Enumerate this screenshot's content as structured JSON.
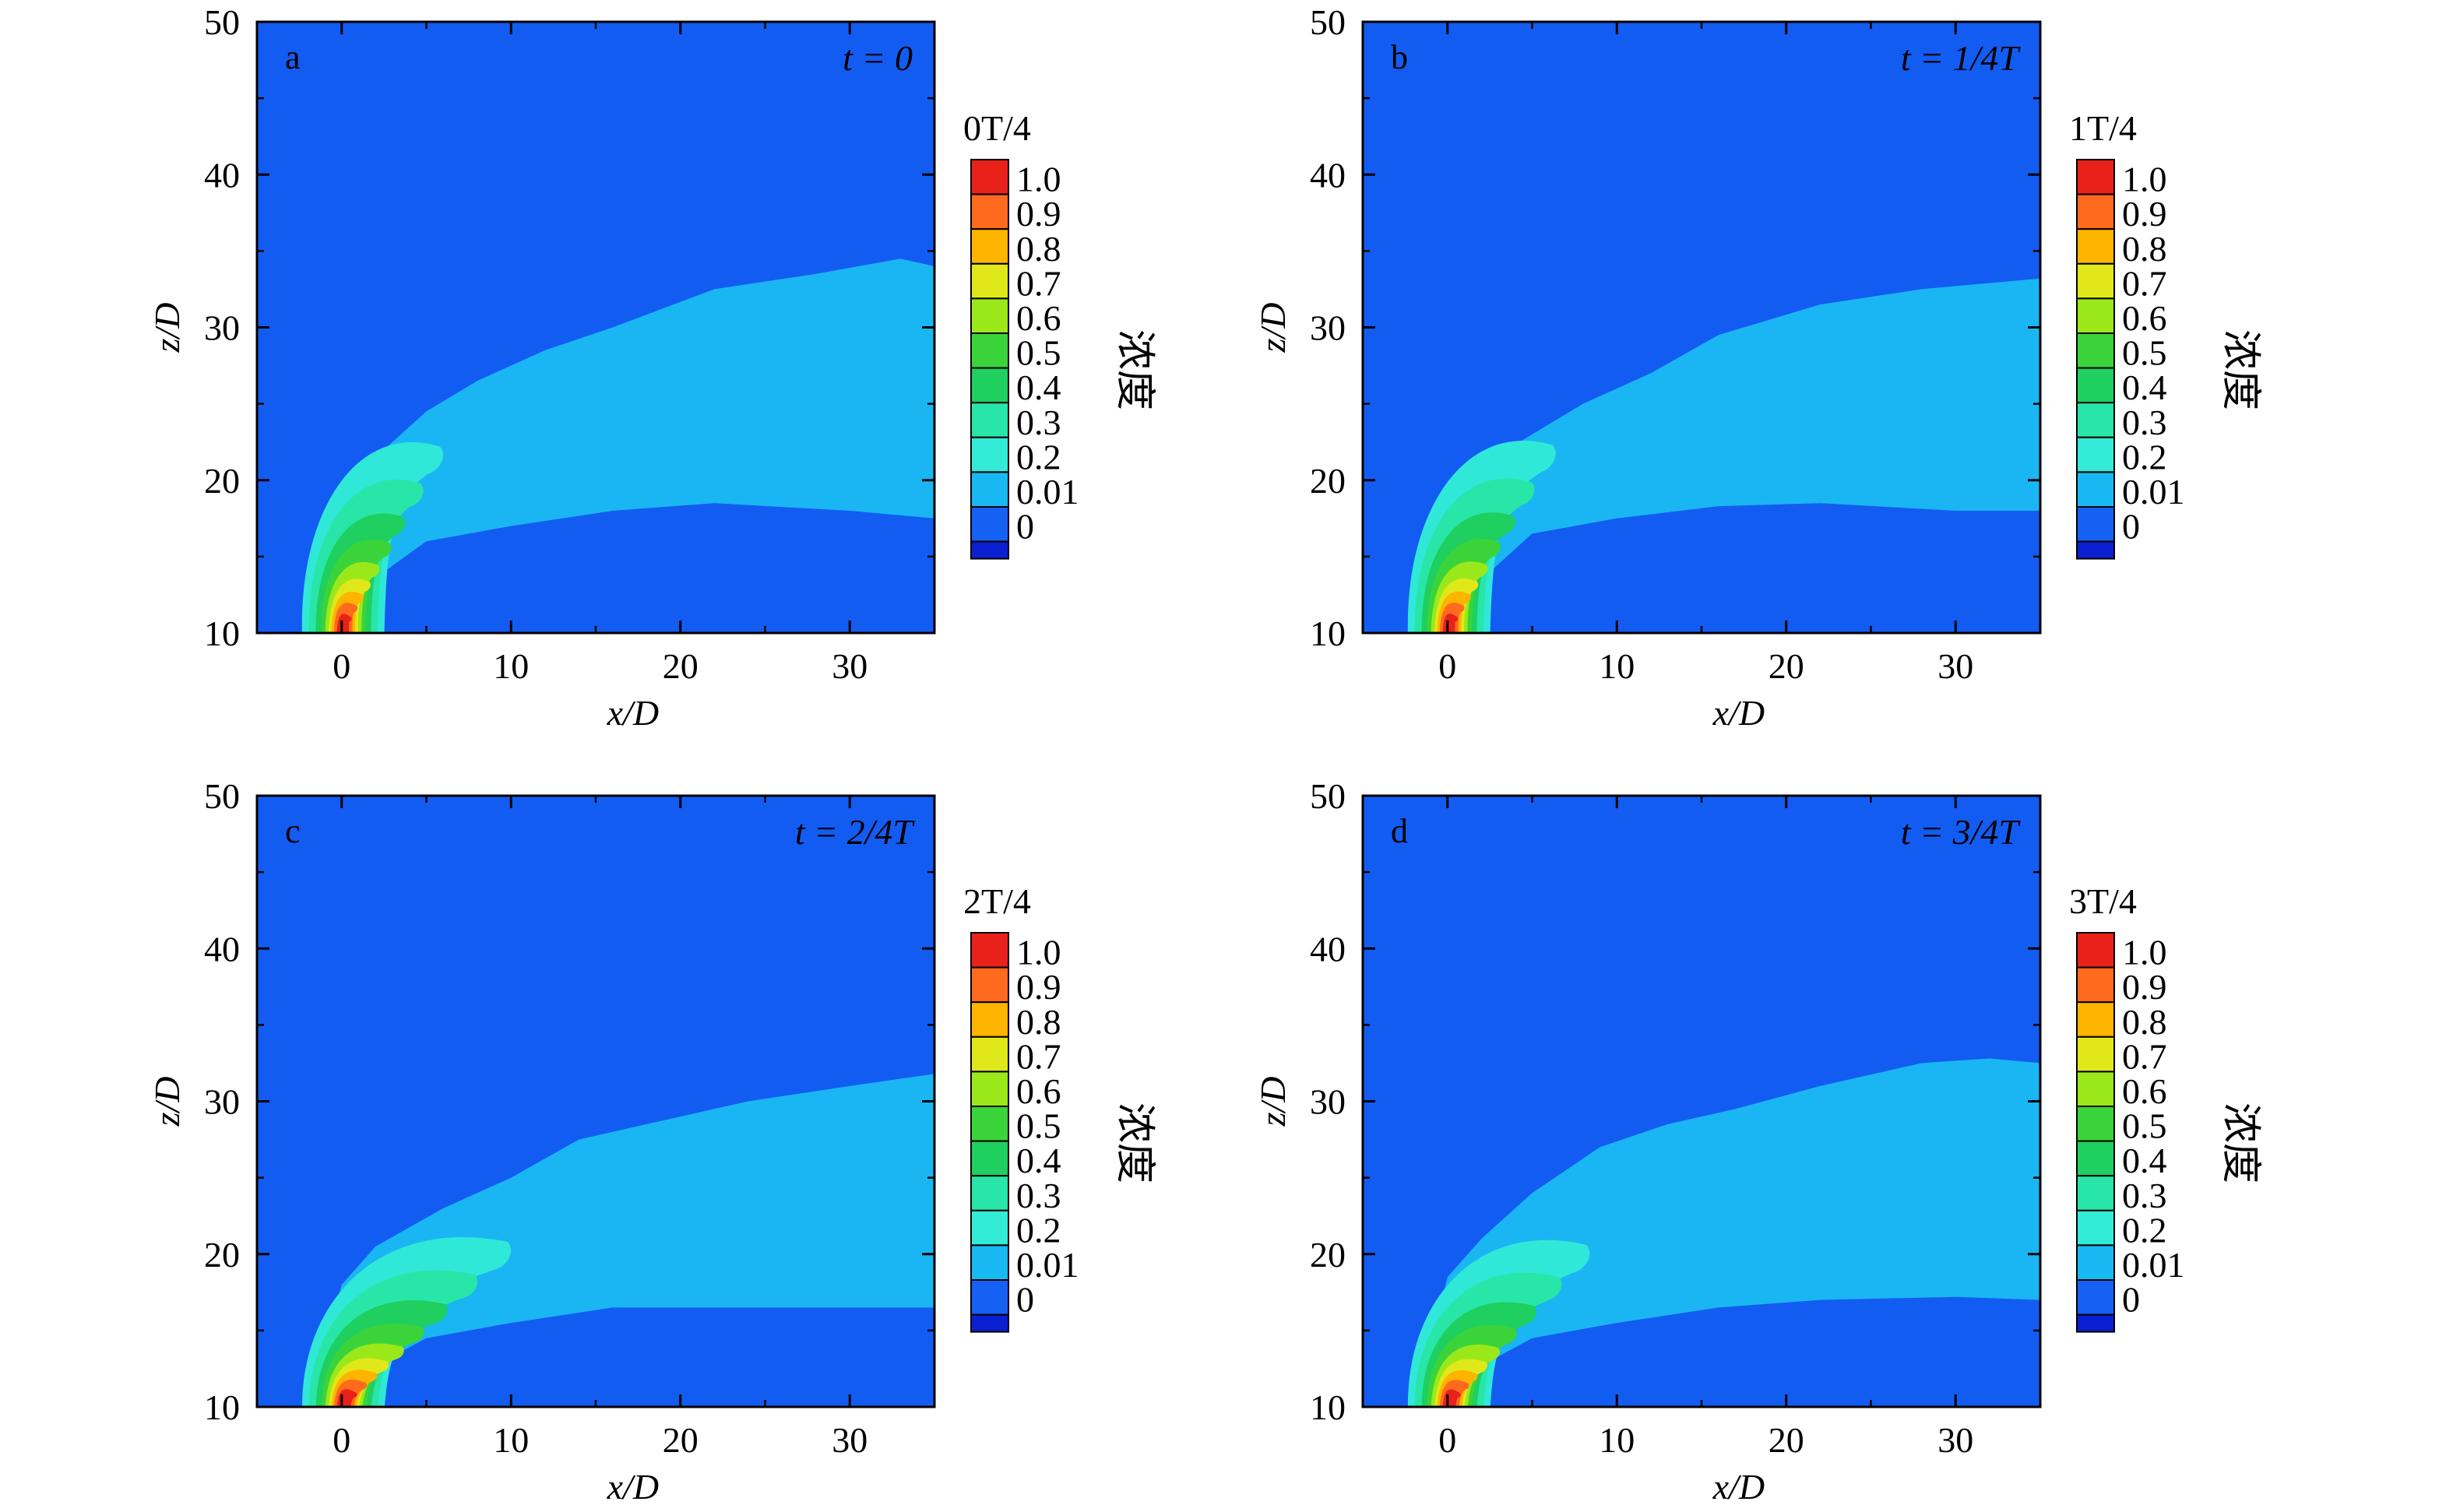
{
  "chart_data": [
    {
      "type": "heatmap",
      "panel": "a",
      "time_label": "t = 0",
      "colorbar_title": "0T/4",
      "colorbar_name": "浓度",
      "xlabel": "x/D",
      "ylabel": "z/D",
      "xlim": [
        -5,
        35
      ],
      "ylim": [
        10,
        50
      ],
      "xticks": [
        0,
        10,
        20,
        30
      ],
      "yticks": [
        10,
        20,
        30,
        40,
        50
      ],
      "plume_outer_upper": [
        [
          -1.5,
          10
        ],
        [
          -1.2,
          14
        ],
        [
          0,
          18.5
        ],
        [
          2,
          21.5
        ],
        [
          5,
          24.5
        ],
        [
          8,
          26.5
        ],
        [
          12,
          28.5
        ],
        [
          16,
          30
        ],
        [
          22,
          32.5
        ],
        [
          28,
          33.5
        ],
        [
          33,
          34.5
        ],
        [
          35,
          34
        ]
      ],
      "plume_outer_lower": [
        [
          35,
          17.5
        ],
        [
          30,
          18
        ],
        [
          22,
          18.5
        ],
        [
          16,
          18
        ],
        [
          10,
          17
        ],
        [
          5,
          16
        ],
        [
          2.5,
          14
        ],
        [
          1.5,
          12
        ],
        [
          1.2,
          10
        ]
      ],
      "jet_tip": [
        5.8,
        21.6
      ]
    },
    {
      "type": "heatmap",
      "panel": "b",
      "time_label": "t = 1/4T",
      "colorbar_title": "1T/4",
      "colorbar_name": "浓度",
      "xlabel": "x/D",
      "ylabel": "z/D",
      "xlim": [
        -5,
        35
      ],
      "ylim": [
        10,
        50
      ],
      "xticks": [
        0,
        10,
        20,
        30
      ],
      "yticks": [
        10,
        20,
        30,
        40,
        50
      ],
      "plume_outer_upper": [
        [
          -1.5,
          10
        ],
        [
          -1.2,
          14
        ],
        [
          0,
          18.5
        ],
        [
          2,
          21
        ],
        [
          5,
          23
        ],
        [
          8,
          25
        ],
        [
          12,
          27
        ],
        [
          16,
          29.5
        ],
        [
          22,
          31.5
        ],
        [
          28,
          32.5
        ],
        [
          33,
          33
        ],
        [
          35,
          33.2
        ]
      ],
      "plume_outer_lower": [
        [
          35,
          18
        ],
        [
          30,
          18
        ],
        [
          22,
          18.5
        ],
        [
          16,
          18.3
        ],
        [
          10,
          17.5
        ],
        [
          5,
          16.5
        ],
        [
          2.5,
          14
        ],
        [
          1.5,
          12
        ],
        [
          1.2,
          10
        ]
      ],
      "jet_tip": [
        6.2,
        21.7
      ]
    },
    {
      "type": "heatmap",
      "panel": "c",
      "time_label": "t = 2/4T",
      "colorbar_title": "2T/4",
      "colorbar_name": "浓度",
      "xlabel": "x/D",
      "ylabel": "z/D",
      "xlim": [
        -5,
        35
      ],
      "ylim": [
        10,
        50
      ],
      "xticks": [
        0,
        10,
        20,
        30
      ],
      "yticks": [
        10,
        20,
        30,
        40,
        50
      ],
      "plume_outer_upper": [
        [
          -1.5,
          10
        ],
        [
          -1.2,
          13
        ],
        [
          0,
          18
        ],
        [
          2,
          20.5
        ],
        [
          6,
          23
        ],
        [
          10,
          25
        ],
        [
          14,
          27.5
        ],
        [
          18,
          28.5
        ],
        [
          24,
          30
        ],
        [
          30,
          31
        ],
        [
          35,
          31.8
        ]
      ],
      "plume_outer_lower": [
        [
          35,
          16.5
        ],
        [
          30,
          16.5
        ],
        [
          22,
          16.5
        ],
        [
          16,
          16.5
        ],
        [
          10,
          15.5
        ],
        [
          5,
          14.5
        ],
        [
          2.5,
          13
        ],
        [
          1.5,
          11.5
        ],
        [
          1.2,
          10
        ]
      ],
      "jet_tip": [
        9.8,
        20.2
      ]
    },
    {
      "type": "heatmap",
      "panel": "d",
      "time_label": "t = 3/4T",
      "colorbar_title": "3T/4",
      "colorbar_name": "浓度",
      "xlabel": "x/D",
      "ylabel": "z/D",
      "xlim": [
        -5,
        35
      ],
      "ylim": [
        10,
        50
      ],
      "xticks": [
        0,
        10,
        20,
        30
      ],
      "yticks": [
        10,
        20,
        30,
        40,
        50
      ],
      "plume_outer_upper": [
        [
          -1.5,
          10
        ],
        [
          -1.2,
          13
        ],
        [
          0,
          18.5
        ],
        [
          2,
          21
        ],
        [
          5,
          24
        ],
        [
          9,
          27
        ],
        [
          13,
          28.5
        ],
        [
          17,
          29.5
        ],
        [
          22,
          31
        ],
        [
          28,
          32.5
        ],
        [
          32,
          32.8
        ],
        [
          35,
          32.5
        ]
      ],
      "plume_outer_lower": [
        [
          35,
          17
        ],
        [
          30,
          17.2
        ],
        [
          22,
          17
        ],
        [
          16,
          16.5
        ],
        [
          10,
          15.5
        ],
        [
          5,
          14.5
        ],
        [
          2.5,
          13
        ],
        [
          1.5,
          11.5
        ],
        [
          1.2,
          10
        ]
      ],
      "jet_tip": [
        8.2,
        20
      ]
    }
  ],
  "colorbar": {
    "levels": [
      "1.0",
      "0.9",
      "0.8",
      "0.7",
      "0.6",
      "0.5",
      "0.4",
      "0.3",
      "0.2",
      "0.01",
      "0"
    ],
    "colors": [
      "#e8211a",
      "#ff6a1f",
      "#ffb400",
      "#e0e81a",
      "#9be81a",
      "#3ad43a",
      "#1fcf5f",
      "#28e6a8",
      "#32ecd8",
      "#18b9f2",
      "#1461f3",
      "#0a1fcf"
    ]
  },
  "colors": {
    "background": "#135cf2",
    "outer_plume": "#1ab6f3",
    "near_plume": "#30e8d8"
  }
}
